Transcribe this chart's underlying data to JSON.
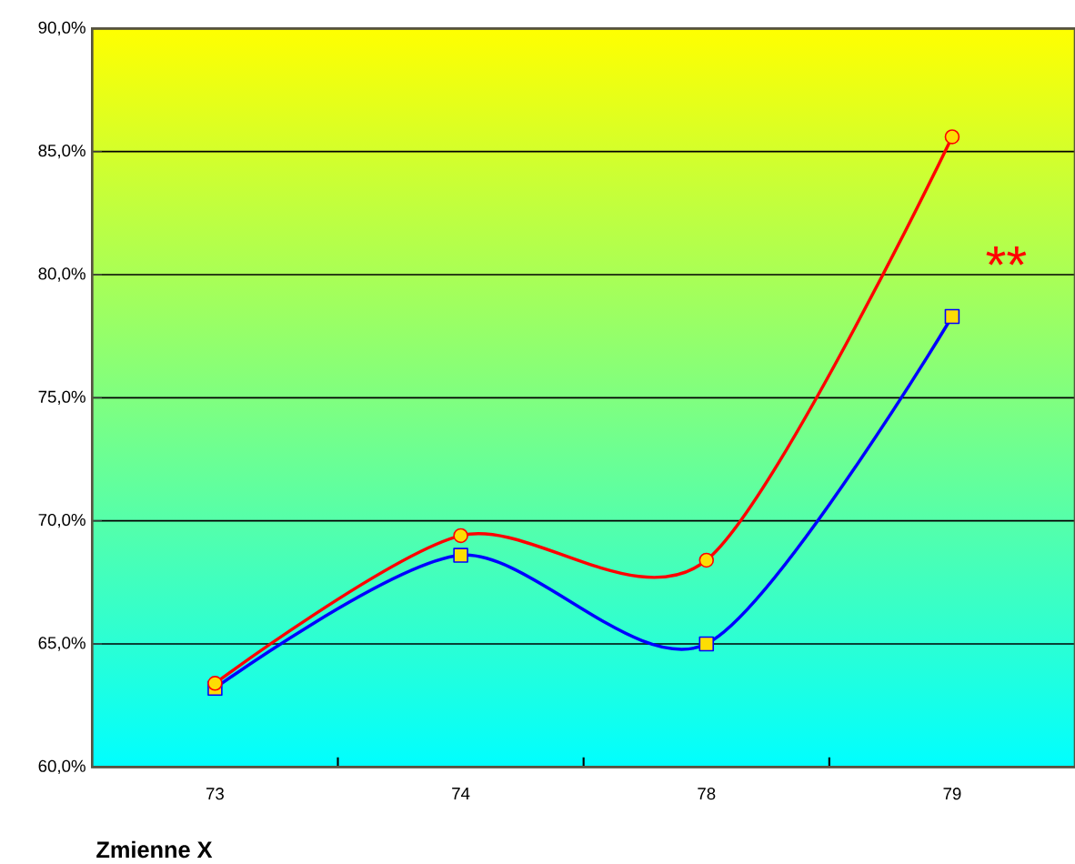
{
  "chart_data": {
    "type": "line",
    "xlabel": "Zmienne X",
    "categories": [
      "73",
      "74",
      "78",
      "79"
    ],
    "series": [
      {
        "color": "#ff0000",
        "marker": "circle",
        "values": [
          63.4,
          69.4,
          68.4,
          85.6
        ]
      },
      {
        "color": "#0000ff",
        "marker": "square",
        "values": [
          63.2,
          68.6,
          65.0,
          78.3
        ]
      }
    ],
    "ylim": [
      60,
      90
    ],
    "yticks": [
      {
        "value": 60,
        "label": "60,0%"
      },
      {
        "value": 65,
        "label": "65,0%"
      },
      {
        "value": 70,
        "label": "70,0%"
      },
      {
        "value": 75,
        "label": "75,0%"
      },
      {
        "value": 80,
        "label": "80,0%"
      },
      {
        "value": 85,
        "label": "85,0%"
      },
      {
        "value": 90,
        "label": "90,0%"
      }
    ],
    "grid": "y",
    "line_style": "solid",
    "annotations": [
      "**"
    ]
  }
}
